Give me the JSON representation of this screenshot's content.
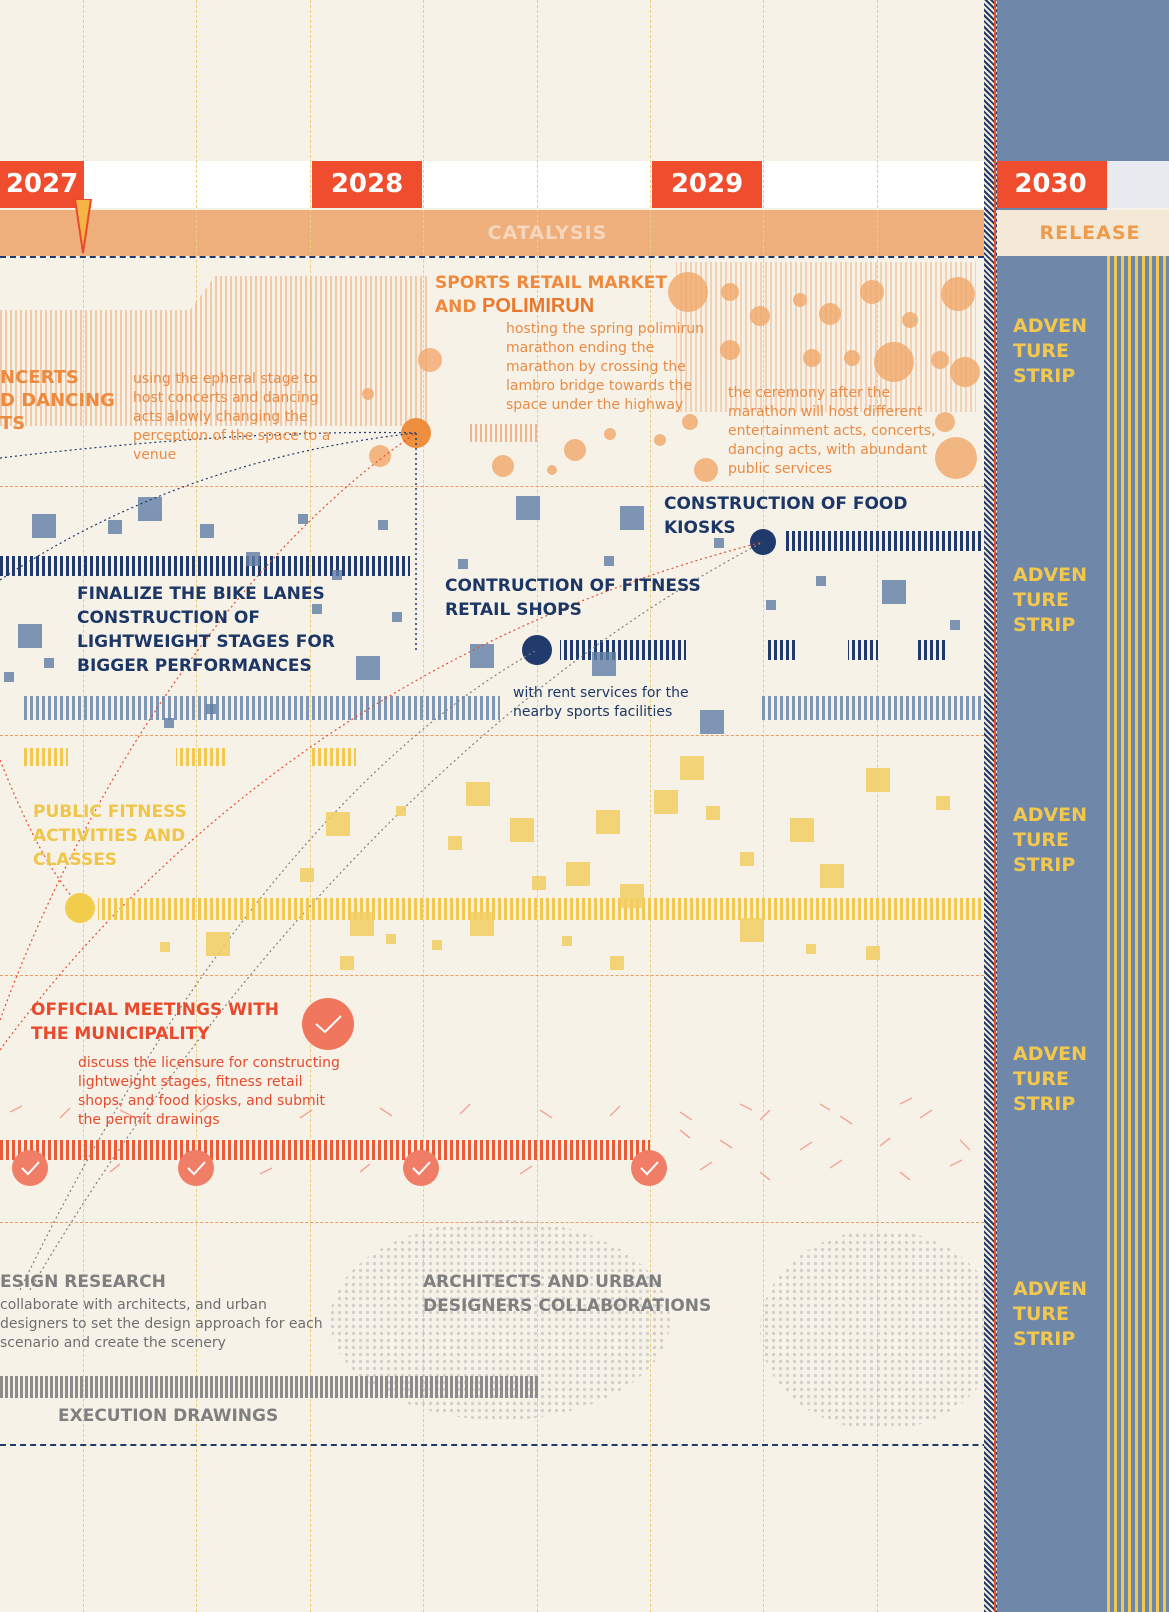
{
  "timeline": {
    "years": [
      "2027",
      "2028",
      "2029",
      "2030"
    ],
    "phases": {
      "catalysis": "CATALYSIS",
      "release": "RELEASE"
    }
  },
  "events": {
    "concerts": {
      "title": "NCERTS\nD DANCING\nTS",
      "description": "using the epheral stage to\nhost concerts and dancing\nacts alowly changing the\nperception of the space to a\nvenue"
    },
    "market": {
      "title_line1": "SPORTS RETAIL MARKET",
      "title_prefix": "AND",
      "brand": "POLIMIRUN",
      "description": "hosting the spring polimirun\nmarathon ending the\nmarathon by crossing the\nlambro bridge towards the\nspace under the highway"
    },
    "ceremony": {
      "description": "the ceremony after the\nmarathon will host different\nentertainment acts, concerts,\ndancing acts, with abundant\npublic services"
    },
    "food_kiosks": {
      "title": "CONSTRUCTION OF FOOD KIOSKS"
    },
    "bike_lanes": {
      "title": "FINALIZE THE BIKE LANES\nCONSTRUCTION OF\nLIGHTWEIGHT STAGES FOR\nBIGGER PERFORMANCES"
    },
    "fitness_shops": {
      "title": "CONTRUCTION OF FITNESS\nRETAIL SHOPS",
      "description": "with  rent services for the\nnearby sports facilities"
    },
    "public_fitness": {
      "title": "PUBLIC FITNESS\nACTIVITIES AND\nCLASSES"
    },
    "meetings": {
      "title": "OFFICIAL MEETINGS WITH\nTHE MUNICIPALITY",
      "description": "discuss the licensure for constructing\nlightweight stages, fitness retail\nshops, and food kiosks, and submit\nthe permit drawings"
    },
    "design_research": {
      "title": "ESIGN RESEARCH",
      "description": "collaborate with architects, and urban\ndesigners to set the design approach for each\nscenario and create the scenery"
    },
    "collaborations": {
      "title": "ARCHITECTS AND URBAN\nDESIGNERS COLLABORATIONS"
    },
    "execution": {
      "title": "EXECUTION DRAWINGS"
    }
  },
  "side_strip": {
    "labels": [
      "ADVEN\nTURE\nSTRIP",
      "ADVEN\nTURE\nSTRIP",
      "ADVEN\nTURE\nSTRIP",
      "ADVEN\nTURE\nSTRIP",
      "ADVEN\nTURE\nSTRIP"
    ]
  },
  "colors": {
    "year_red": "#ef4d2d",
    "orange": "#ee8a3e",
    "navy": "#1c3766",
    "slate": "#6f88aa",
    "yellow": "#f0c64a",
    "red": "#e84a2d",
    "gray": "#7f7f7f"
  }
}
